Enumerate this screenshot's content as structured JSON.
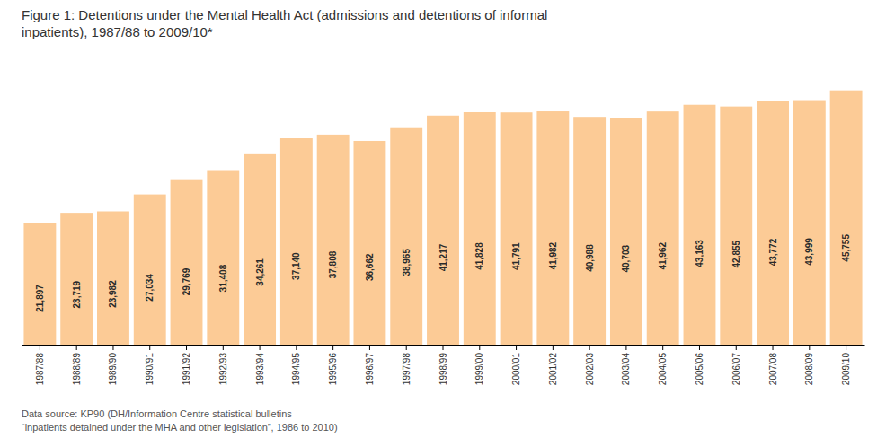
{
  "chart_data": {
    "type": "bar",
    "title": "Figure 1: Detentions under the Mental Health Act (admissions and detentions of informal\ninpatients), 1987/88 to 2009/10*",
    "annotations": [
      "Data source: KP90 (DH/Information Centre statistical bulletins",
      "“inpatients detained under the MHA and other legislation”, 1986 to 2010)"
    ],
    "categories": [
      "1987/88",
      "1988/89",
      "1989/90",
      "1990/91",
      "1991/92",
      "1992/93",
      "1993/94",
      "1994/95",
      "1995/96",
      "1996/97",
      "1997/98",
      "1998/99",
      "1999/00",
      "2000/01",
      "2001/02",
      "2002/03",
      "2003/04",
      "2004/05",
      "2005/06",
      "2006/07",
      "2007/08",
      "2008/09",
      "2009/10"
    ],
    "values": [
      21897,
      23719,
      23982,
      27034,
      29769,
      31408,
      34261,
      37140,
      37808,
      36662,
      38965,
      41217,
      41828,
      41791,
      41982,
      40988,
      40703,
      41962,
      43163,
      42855,
      43772,
      43999,
      45755
    ],
    "value_labels": [
      "21,897",
      "23,719",
      "23,982",
      "27,034",
      "29,769",
      "31,408",
      "34,261",
      "37,140",
      "37,808",
      "36,662",
      "38,965",
      "41,217",
      "41,828",
      "41,791",
      "41,982",
      "40,988",
      "40,703",
      "41,962",
      "43,163",
      "42,855",
      "43,772",
      "43,999",
      "45,755"
    ],
    "color": "#FCCB96",
    "ylim": [
      0,
      52000
    ],
    "data_labels": true,
    "tick_labels": "x"
  }
}
